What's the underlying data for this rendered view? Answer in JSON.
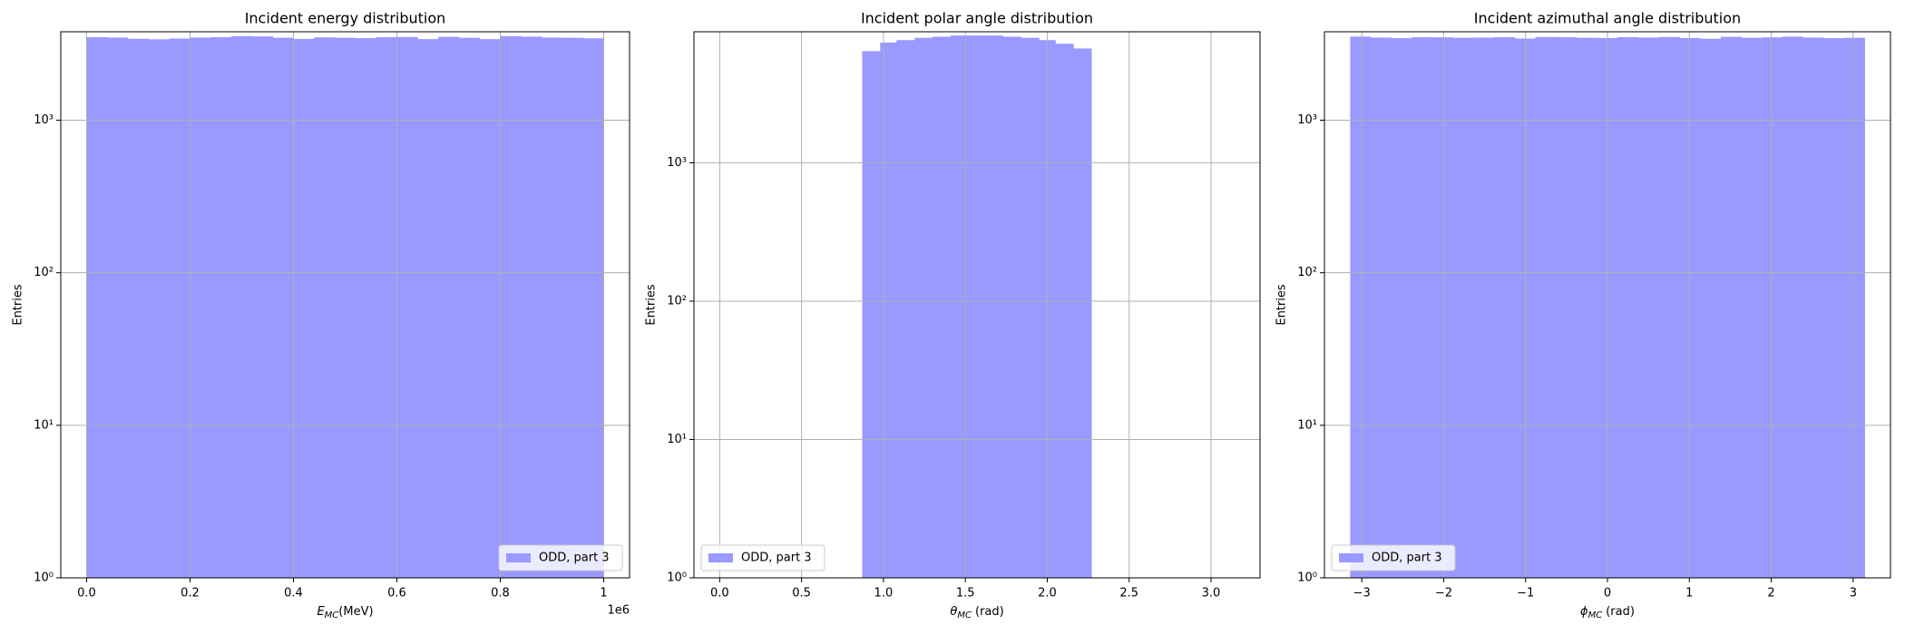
{
  "chart_data": [
    {
      "type": "histogram",
      "title": "Incident energy distribution",
      "xlabel": {
        "symbol": "E",
        "subscript": "MC",
        "unit": "(MeV)"
      },
      "ylabel": "Entries",
      "x_offset_text": "1e6",
      "bins": [
        0,
        40000,
        80000,
        120000,
        160000,
        200000,
        240000,
        280000,
        320000,
        360000,
        400000,
        440000,
        480000,
        520000,
        560000,
        600000,
        640000,
        680000,
        720000,
        760000,
        800000,
        840000,
        880000,
        920000,
        960000,
        1000000
      ],
      "series": [
        {
          "name": "ODD, part 3",
          "color": "#9999ff",
          "values": [
            3500,
            3480,
            3420,
            3390,
            3430,
            3480,
            3500,
            3560,
            3540,
            3470,
            3410,
            3490,
            3470,
            3450,
            3500,
            3510,
            3400,
            3520,
            3470,
            3400,
            3560,
            3530,
            3480,
            3470,
            3440
          ]
        }
      ],
      "xlim": [
        -50000,
        1050000
      ],
      "xticks": [
        {
          "value": 0,
          "label": "0.0"
        },
        0.2,
        0.4,
        0.6,
        0.8,
        1.0
      ],
      "xticks_scale": 1000000,
      "ylim": [
        1,
        3800
      ],
      "yscale": "log",
      "yticks": [
        {
          "value": 1,
          "label": "10⁰"
        },
        {
          "value": 10,
          "label": "10¹"
        },
        {
          "value": 100,
          "label": "10²"
        },
        {
          "value": 1000,
          "label": "10³"
        }
      ],
      "grid": true,
      "legend": "lower right"
    },
    {
      "type": "histogram",
      "title": "Incident polar angle distribution",
      "xlabel": {
        "symbol": "θ",
        "subscript": "MC",
        "unit": "(rad)"
      },
      "ylabel": "Entries",
      "bins": [
        0.87,
        0.98,
        1.08,
        1.19,
        1.3,
        1.41,
        1.52,
        1.62,
        1.73,
        1.84,
        1.95,
        2.05,
        2.16,
        2.27
      ],
      "series": [
        {
          "name": "ODD, part 3",
          "color": "#9999ff",
          "values": [
            6410,
            7390,
            7700,
            8000,
            8150,
            8300,
            8300,
            8300,
            8150,
            8000,
            7700,
            7250,
            6700
          ]
        }
      ],
      "xlim": [
        -0.157,
        3.299
      ],
      "xticks": [
        {
          "value": 0,
          "label": "0.0"
        },
        0.5,
        {
          "value": 1,
          "label": "1.0"
        },
        1.5,
        {
          "value": 2,
          "label": "2.0"
        },
        2.5,
        {
          "value": 3,
          "label": "3.0"
        }
      ],
      "ylim": [
        1,
        8850
      ],
      "yscale": "log",
      "yticks": [
        {
          "value": 1,
          "label": "10⁰"
        },
        {
          "value": 10,
          "label": "10¹"
        },
        {
          "value": 100,
          "label": "10²"
        },
        {
          "value": 1000,
          "label": "10³"
        }
      ],
      "grid": true,
      "legend": "lower left"
    },
    {
      "type": "histogram",
      "title": "Incident azimuthal angle distribution",
      "xlabel": {
        "symbol": "ϕ",
        "subscript": "MC",
        "unit": "(rad)"
      },
      "ylabel": "Entries",
      "bins": [
        -3.1416,
        -2.8903,
        -2.6389,
        -2.3876,
        -2.1363,
        -1.885,
        -1.6336,
        -1.3823,
        -1.131,
        -0.8796,
        -0.6283,
        -0.377,
        -0.1257,
        0.1257,
        0.377,
        0.6283,
        0.8796,
        1.131,
        1.3823,
        1.6336,
        1.885,
        2.1363,
        2.3876,
        2.6389,
        2.8903,
        3.1416
      ],
      "series": [
        {
          "name": "ODD, part 3",
          "color": "#9999ff",
          "values": [
            3530,
            3480,
            3450,
            3500,
            3490,
            3470,
            3480,
            3500,
            3430,
            3510,
            3500,
            3470,
            3460,
            3500,
            3480,
            3510,
            3460,
            3420,
            3520,
            3470,
            3490,
            3530,
            3480,
            3450,
            3470
          ]
        }
      ],
      "xlim": [
        -3.456,
        3.456
      ],
      "xticks": [
        {
          "value": -3,
          "label": "−3"
        },
        {
          "value": -2,
          "label": "−2"
        },
        {
          "value": -1,
          "label": "−1"
        },
        0,
        1,
        2,
        3
      ],
      "ylim": [
        1,
        3800
      ],
      "yscale": "log",
      "yticks": [
        {
          "value": 1,
          "label": "10⁰"
        },
        {
          "value": 10,
          "label": "10¹"
        },
        {
          "value": 100,
          "label": "10²"
        },
        {
          "value": 1000,
          "label": "10³"
        }
      ],
      "grid": true,
      "legend": "lower left"
    }
  ]
}
